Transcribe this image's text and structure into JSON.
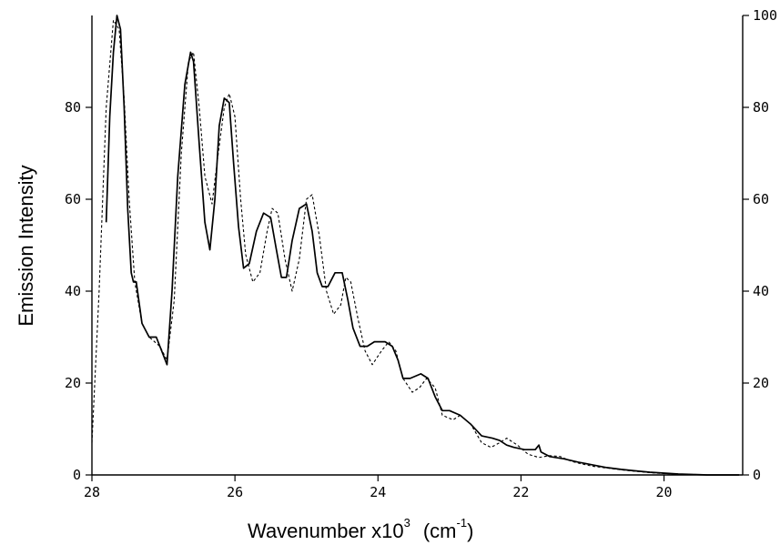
{
  "chart_data": {
    "type": "line",
    "title": "",
    "xlabel": "Wavenumber x10",
    "xlabel_sup": "3",
    "xlabel_unit_pre": "(cm",
    "xlabel_unit_sup": "-1",
    "xlabel_unit_post": ")",
    "ylabel": "Emission Intensity",
    "x_reversed": true,
    "xlim": [
      28,
      18.9
    ],
    "ylim_left": [
      0,
      100
    ],
    "ylim_right": [
      0,
      100
    ],
    "x_ticks": [
      28,
      26,
      24,
      22,
      20
    ],
    "y_ticks_left": [
      0,
      20,
      40,
      60,
      80
    ],
    "y_ticks_right": [
      0,
      20,
      40,
      60,
      80,
      100
    ],
    "grid": false,
    "legend": "none",
    "series": [
      {
        "style": "solid",
        "color": "#000000",
        "x": [
          27.8,
          27.75,
          27.7,
          27.65,
          27.6,
          27.55,
          27.5,
          27.45,
          27.42,
          27.38,
          27.3,
          27.2,
          27.1,
          27.0,
          26.95,
          26.88,
          26.8,
          26.7,
          26.62,
          26.58,
          26.5,
          26.42,
          26.35,
          26.28,
          26.22,
          26.15,
          26.08,
          26.02,
          25.95,
          25.88,
          25.8,
          25.7,
          25.6,
          25.5,
          25.42,
          25.35,
          25.28,
          25.2,
          25.1,
          25.0,
          24.92,
          24.85,
          24.78,
          24.7,
          24.6,
          24.5,
          24.42,
          24.35,
          24.25,
          24.15,
          24.05,
          23.9,
          23.8,
          23.72,
          23.65,
          23.55,
          23.4,
          23.3,
          23.2,
          23.1,
          23.0,
          22.85,
          22.7,
          22.55,
          22.4,
          22.3,
          22.2,
          22.1,
          21.95,
          21.8,
          21.75,
          21.72,
          21.6,
          21.4,
          21.2,
          21.0,
          20.8,
          20.6,
          20.4,
          20.2,
          20.0,
          19.8,
          19.6,
          19.4,
          19.2,
          18.95
        ],
        "y": [
          55,
          78,
          92,
          100,
          97,
          80,
          58,
          44,
          42,
          42,
          33,
          30,
          30,
          26,
          24,
          40,
          65,
          85,
          92,
          90,
          72,
          55,
          49,
          60,
          76,
          82,
          81,
          68,
          54,
          45,
          46,
          53,
          57,
          56,
          49,
          43,
          43,
          51,
          58,
          59,
          53,
          44,
          41,
          41,
          44,
          44,
          38,
          32,
          28,
          28,
          29,
          29,
          28,
          25,
          21,
          21,
          22,
          21,
          17,
          14,
          14,
          13,
          11,
          8.5,
          8,
          7.5,
          6.5,
          6,
          5.5,
          5.5,
          6.5,
          5,
          4,
          3.5,
          2.8,
          2.2,
          1.6,
          1.2,
          0.9,
          0.6,
          0.4,
          0.2,
          0.1,
          0,
          0,
          0
        ]
      },
      {
        "style": "dashed",
        "color": "#000000",
        "x": [
          28,
          27.9,
          27.8,
          27.7,
          27.62,
          27.55,
          27.48,
          27.4,
          27.3,
          27.2,
          27.05,
          26.95,
          26.85,
          26.75,
          26.65,
          26.58,
          26.5,
          26.42,
          26.32,
          26.25,
          26.15,
          26.08,
          26.0,
          25.92,
          25.85,
          25.75,
          25.65,
          25.55,
          25.48,
          25.4,
          25.3,
          25.2,
          25.1,
          25.0,
          24.92,
          24.82,
          24.72,
          24.62,
          24.52,
          24.45,
          24.38,
          24.28,
          24.18,
          24.08,
          23.95,
          23.85,
          23.75,
          23.65,
          23.52,
          23.42,
          23.32,
          23.2,
          23.1,
          22.95,
          22.85,
          22.7,
          22.55,
          22.42,
          22.3,
          22.2,
          22.05,
          21.9,
          21.75,
          21.6,
          21.45,
          21.3,
          21.15,
          21.0,
          20.8,
          20.6,
          20.4,
          20.2,
          20.0,
          19.8,
          19.6,
          19.4,
          19.2,
          18.95
        ],
        "y": [
          7,
          40,
          80,
          99,
          97,
          82,
          60,
          42,
          33,
          30,
          28,
          25,
          38,
          70,
          90,
          92,
          80,
          65,
          59,
          68,
          80,
          83,
          78,
          60,
          48,
          42,
          44,
          53,
          58,
          57,
          47,
          40,
          47,
          60,
          61,
          52,
          40,
          35,
          37,
          43,
          42,
          34,
          27,
          24,
          27,
          29,
          27,
          21,
          18,
          19,
          21,
          19,
          13,
          12,
          13,
          11,
          7,
          6,
          7,
          8,
          6.5,
          4.5,
          3.8,
          4.2,
          4,
          3,
          2.4,
          1.9,
          1.5,
          1.1,
          0.8,
          0.5,
          0.3,
          0.2,
          0.1,
          0,
          0,
          0
        ]
      }
    ]
  }
}
